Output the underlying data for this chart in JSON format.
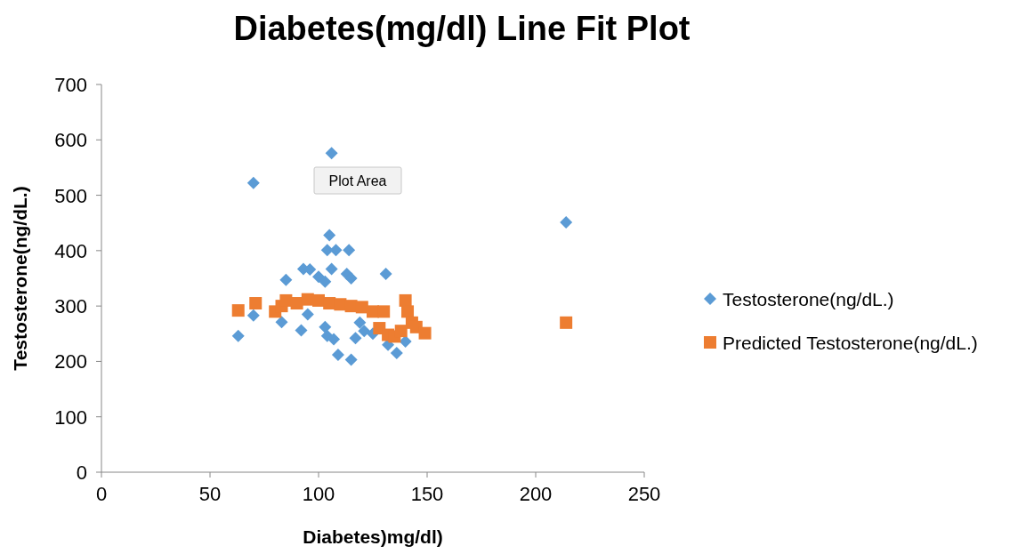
{
  "chart_data": {
    "type": "scatter",
    "title": "Diabetes(mg/dl) Line Fit  Plot",
    "xlabel": "Diabetes)mg/dl)",
    "ylabel": "Testosterone(ng/dL.)",
    "xlim": [
      0,
      250
    ],
    "xticks": [
      0,
      50,
      100,
      150,
      200,
      250
    ],
    "ylim": [
      0,
      700
    ],
    "yticks": [
      0,
      100,
      200,
      300,
      400,
      500,
      600,
      700
    ],
    "grid": false,
    "legend": "right",
    "annotations": [
      "Plot Area"
    ],
    "series": [
      {
        "name": "Testosterone(ng/dL.)",
        "color": "#5b9bd5",
        "marker": "diamond",
        "x": [
          106,
          70,
          214,
          105,
          104,
          108,
          114,
          93,
          96,
          85,
          100,
          103,
          106,
          113,
          115,
          131,
          63,
          70,
          83,
          92,
          104,
          103,
          107,
          109,
          115,
          117,
          121,
          132,
          136,
          140,
          95,
          125,
          119
        ],
        "values": [
          576,
          522,
          451,
          428,
          401,
          401,
          401,
          367,
          366,
          347,
          353,
          344,
          367,
          358,
          350,
          358,
          246,
          283,
          271,
          256,
          246,
          262,
          240,
          212,
          203,
          242,
          255,
          230,
          215,
          236,
          285,
          250,
          270
        ]
      },
      {
        "name": "Predicted Testosterone(ng/dL.)",
        "color": "#ed7d31",
        "marker": "square",
        "x": [
          63,
          71,
          80,
          83,
          85,
          90,
          95,
          100,
          105,
          110,
          115,
          120,
          125,
          128,
          130,
          132,
          135,
          138,
          140,
          141,
          143,
          145,
          149,
          214
        ],
        "values": [
          292,
          305,
          290,
          300,
          310,
          305,
          312,
          310,
          305,
          303,
          300,
          298,
          290,
          260,
          290,
          248,
          245,
          255,
          310,
          290,
          270,
          262,
          251,
          270
        ]
      }
    ]
  }
}
